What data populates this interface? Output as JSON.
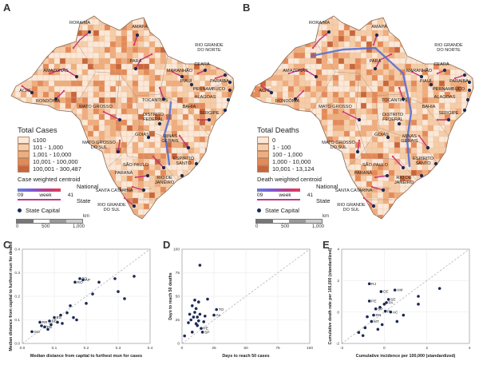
{
  "panels": {
    "a": "A",
    "b": "B",
    "c": "C",
    "d": "D",
    "e": "E"
  },
  "map_labels": {
    "roraima": "RORAIMA",
    "amapa": "AMAPÁ",
    "amazonas": "AMAZONAS",
    "para": "PARÁ",
    "maranhao": "MARANHÃO",
    "ceara": "CEARÁ",
    "rgn": "RIO GRANDE\nDO NORTE",
    "paraiba": "PARAÍBA",
    "pernambuco": "PERNAMBUCO",
    "alagoas": "ALAGOAS",
    "sergipe": "SERGIPE",
    "piaui": "PIAUÍ",
    "acre": "ACRE",
    "rondonia": "RONDÔNIA",
    "tocantins": "TOCANTINS",
    "bahia": "BAHIA",
    "mato_grosso": "MATO GROSSO",
    "df": "DISTRITO\nFEDERAL",
    "goias": "GOIÁS",
    "minas": "MINAS\nGERAIS",
    "mgs": "MATO GROSSO\nDO SUL",
    "espirito": "ESPÍRITO\nSANTO",
    "sao_paulo": "SÃO PAULO",
    "rio": "RIO DE\nJANEIRO",
    "parana": "PARANÁ",
    "santa_catarina": "SANTA CATARINA",
    "rgs": "RIO GRANDE\nDO SUL"
  },
  "legend_cases": {
    "title": "Total Cases",
    "classes": [
      "≤100",
      "101 - 1,000",
      "1,001 - 10,000",
      "10,001 - 100,000",
      "100,001 - 300,487"
    ],
    "colors": [
      "#fbe8d8",
      "#f6cda9",
      "#efad7e",
      "#e48a58",
      "#c7663c"
    ],
    "centroid_title": "Case weighted centroid",
    "national": "National",
    "state": "State",
    "week_start": "09",
    "week_word": "week",
    "week_end": "41",
    "capital": "State Capital"
  },
  "legend_deaths": {
    "title": "Total Deaths",
    "classes": [
      "0",
      "1 - 100",
      "100 - 1,000",
      "1,000 - 10,000",
      "10,001 - 13,124"
    ],
    "colors": [
      "#fbe8d8",
      "#f6cda9",
      "#efad7e",
      "#e48a58",
      "#c7663c"
    ],
    "centroid_title": "Death weighted centroid",
    "national": "National",
    "state": "State",
    "week_start": "09",
    "week_word": "week",
    "week_end": "41",
    "capital": "State Capital"
  },
  "scale": {
    "ticks": [
      "0",
      "500",
      "1,000"
    ],
    "unit": "km"
  },
  "chart_data": [
    {
      "type": "scatter",
      "panel": "C",
      "xlabel": "Median distance from capital to furthest mun for cases",
      "ylabel": "Median distance from capital to furthest mun for deaths",
      "xlim": [
        0,
        0.4
      ],
      "ylim": [
        0,
        0.4
      ],
      "xticks": [
        "0.0",
        "0.1",
        "0.2",
        "0.3",
        "0.4"
      ],
      "yticks": [
        "0.0",
        "0.1",
        "0.2",
        "0.3",
        "0.4"
      ],
      "diagonal": true,
      "points": [
        {
          "x": 0.03,
          "y": 0.05,
          "label": "GO"
        },
        {
          "x": 0.055,
          "y": 0.09,
          "label": "RR"
        },
        {
          "x": 0.07,
          "y": 0.07,
          "label": "PB"
        },
        {
          "x": 0.085,
          "y": 0.095,
          "label": "SE"
        },
        {
          "x": 0.1,
          "y": 0.11,
          "label": "ES"
        },
        {
          "x": 0.165,
          "y": 0.26,
          "label": "RO"
        },
        {
          "x": 0.18,
          "y": 0.275,
          "label": "TO"
        },
        {
          "x": 0.19,
          "y": 0.27,
          "label": "AP"
        },
        {
          "x": 0.09,
          "y": 0.08,
          "label": ""
        },
        {
          "x": 0.11,
          "y": 0.09,
          "label": ""
        },
        {
          "x": 0.12,
          "y": 0.12,
          "label": ""
        },
        {
          "x": 0.14,
          "y": 0.13,
          "label": ""
        },
        {
          "x": 0.15,
          "y": 0.16,
          "label": ""
        },
        {
          "x": 0.16,
          "y": 0.11,
          "label": ""
        },
        {
          "x": 0.17,
          "y": 0.1,
          "label": ""
        },
        {
          "x": 0.2,
          "y": 0.17,
          "label": ""
        },
        {
          "x": 0.22,
          "y": 0.21,
          "label": ""
        },
        {
          "x": 0.24,
          "y": 0.26,
          "label": ""
        },
        {
          "x": 0.29,
          "y": 0.275,
          "label": ""
        },
        {
          "x": 0.3,
          "y": 0.22,
          "label": ""
        },
        {
          "x": 0.32,
          "y": 0.19,
          "label": ""
        },
        {
          "x": 0.35,
          "y": 0.285,
          "label": ""
        },
        {
          "x": 0.08,
          "y": 0.06,
          "label": ""
        },
        {
          "x": 0.06,
          "y": 0.075,
          "label": ""
        },
        {
          "x": 0.125,
          "y": 0.085,
          "label": ""
        }
      ]
    },
    {
      "type": "scatter",
      "panel": "D",
      "xlabel": "Days to reach 50 cases",
      "ylabel": "Days to reach 50 deaths",
      "xlim": [
        0,
        100
      ],
      "ylim": [
        0,
        100
      ],
      "xticks": [
        "0",
        "25",
        "50",
        "75",
        "100"
      ],
      "yticks": [
        "0",
        "25",
        "50",
        "75",
        "100"
      ],
      "diagonal": true,
      "points": [
        {
          "x": 2,
          "y": 8,
          "label": ""
        },
        {
          "x": 5,
          "y": 22,
          "label": ""
        },
        {
          "x": 6,
          "y": 31,
          "label": ""
        },
        {
          "x": 7,
          "y": 25,
          "label": ""
        },
        {
          "x": 8,
          "y": 40,
          "label": ""
        },
        {
          "x": 8,
          "y": 12,
          "label": ""
        },
        {
          "x": 9,
          "y": 28,
          "label": ""
        },
        {
          "x": 10,
          "y": 46,
          "label": ""
        },
        {
          "x": 10,
          "y": 33,
          "label": ""
        },
        {
          "x": 11,
          "y": 21,
          "label": ""
        },
        {
          "x": 11,
          "y": 37,
          "label": ""
        },
        {
          "x": 12,
          "y": 28,
          "label": ""
        },
        {
          "x": 12,
          "y": 19,
          "label": ""
        },
        {
          "x": 13,
          "y": 44,
          "label": ""
        },
        {
          "x": 13,
          "y": 24,
          "label": ""
        },
        {
          "x": 14,
          "y": 83,
          "label": ""
        },
        {
          "x": 14,
          "y": 31,
          "label": ""
        },
        {
          "x": 15,
          "y": 16,
          "label": "PE"
        },
        {
          "x": 16,
          "y": 12,
          "label": "SP"
        },
        {
          "x": 17,
          "y": 23,
          "label": ""
        },
        {
          "x": 18,
          "y": 29,
          "label": ""
        },
        {
          "x": 20,
          "y": 47,
          "label": ""
        },
        {
          "x": 27,
          "y": 36,
          "label": "TO"
        },
        {
          "x": 25,
          "y": 30,
          "label": "AL"
        }
      ]
    },
    {
      "type": "scatter",
      "panel": "E",
      "xlabel": "Cumulative incidence per 100,000 (standardized)",
      "ylabel": "Cumulative death rate per 100,000 (standardized)",
      "xlim": [
        -2,
        4
      ],
      "ylim": [
        -2,
        4
      ],
      "xticks": [
        "-2",
        "0",
        "2",
        "4"
      ],
      "yticks": [
        "-2",
        "0",
        "2",
        "4"
      ],
      "diagonal": true,
      "points": [
        {
          "x": -0.7,
          "y": 1.8,
          "label": "RJ"
        },
        {
          "x": -0.15,
          "y": 1.3,
          "label": "CE"
        },
        {
          "x": 0.5,
          "y": 1.4,
          "label": "AM"
        },
        {
          "x": -0.7,
          "y": 0.7,
          "label": "PE"
        },
        {
          "x": 0.2,
          "y": 0.8,
          "label": "SE"
        },
        {
          "x": 0.1,
          "y": 0.6,
          "label": "PA"
        },
        {
          "x": -0.4,
          "y": 0.2,
          "label": "SP"
        },
        {
          "x": 0.05,
          "y": 0.05,
          "label": "PI"
        },
        {
          "x": 0.3,
          "y": 0.0,
          "label": "AC"
        },
        {
          "x": -0.5,
          "y": -0.2,
          "label": "RN"
        },
        {
          "x": -0.6,
          "y": -0.6,
          "label": "MT"
        },
        {
          "x": -0.9,
          "y": -1.0,
          "label": ""
        },
        {
          "x": -1.2,
          "y": -1.3,
          "label": ""
        },
        {
          "x": -1.0,
          "y": -1.5,
          "label": ""
        },
        {
          "x": -0.3,
          "y": -1.1,
          "label": ""
        },
        {
          "x": -0.1,
          "y": -0.8,
          "label": ""
        },
        {
          "x": 0.6,
          "y": -0.6,
          "label": ""
        },
        {
          "x": 0.9,
          "y": -0.2,
          "label": ""
        },
        {
          "x": 1.6,
          "y": 0.5,
          "label": ""
        },
        {
          "x": 1.6,
          "y": 1.0,
          "label": ""
        },
        {
          "x": 2.6,
          "y": 1.5,
          "label": ""
        },
        {
          "x": -0.2,
          "y": 0.3,
          "label": ""
        },
        {
          "x": 0.0,
          "y": 0.5,
          "label": ""
        },
        {
          "x": -0.8,
          "y": -0.3,
          "label": ""
        }
      ]
    }
  ]
}
